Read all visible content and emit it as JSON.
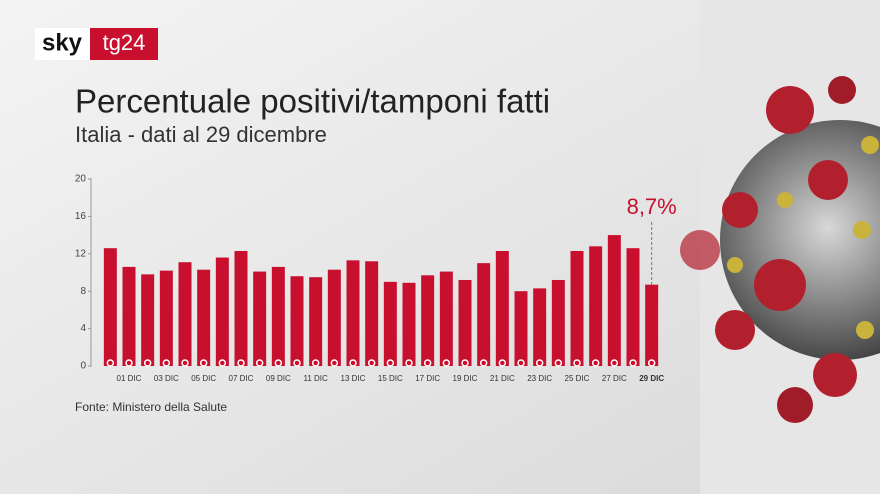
{
  "logo": {
    "brand": "sky",
    "channel": "tg24"
  },
  "chart_data": {
    "type": "bar",
    "title": "Percentuale positivi/tamponi fatti",
    "subtitle": "Italia - dati al 29 dicembre",
    "source": "Fonte: Ministero della Salute",
    "categories": [
      null,
      "01 DIC",
      null,
      "03 DIC",
      null,
      "05 DIC",
      null,
      "07 DIC",
      null,
      "09 DIC",
      null,
      "11 DIC",
      null,
      "13 DIC",
      null,
      "15 DIC",
      null,
      "17 DIC",
      null,
      "19 DIC",
      null,
      "21 DIC",
      null,
      "23 DIC",
      null,
      "25 DIC",
      null,
      "27 DIC",
      null,
      "29 DIC"
    ],
    "values": [
      12.6,
      10.6,
      9.8,
      10.2,
      11.1,
      10.3,
      11.6,
      12.3,
      10.1,
      10.6,
      9.6,
      9.5,
      10.3,
      11.3,
      11.2,
      9.0,
      8.9,
      9.7,
      10.1,
      9.2,
      11.0,
      12.3,
      8.0,
      8.3,
      9.2,
      12.3,
      12.8,
      14.0,
      12.6,
      8.7
    ],
    "value_labels": [
      null,
      null,
      null,
      null,
      null,
      null,
      null,
      null,
      null,
      null,
      null,
      null,
      null,
      null,
      null,
      null,
      null,
      null,
      null,
      null,
      null,
      null,
      null,
      null,
      null,
      null,
      null,
      null,
      null,
      "8,7%"
    ],
    "color": "#c8102e",
    "ylim": [
      0,
      20
    ],
    "yticks": [
      0,
      4,
      8,
      12,
      16,
      20
    ],
    "grid": false
  }
}
